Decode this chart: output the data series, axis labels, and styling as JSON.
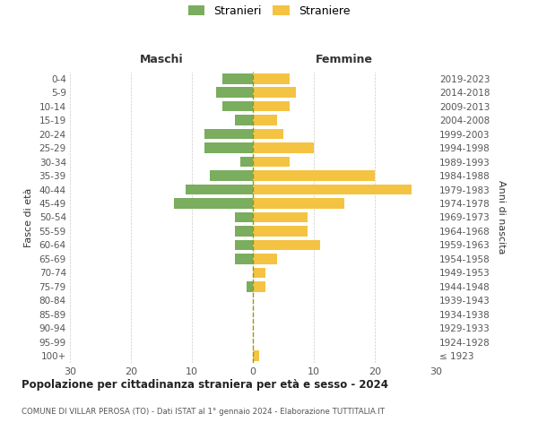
{
  "age_groups": [
    "100+",
    "95-99",
    "90-94",
    "85-89",
    "80-84",
    "75-79",
    "70-74",
    "65-69",
    "60-64",
    "55-59",
    "50-54",
    "45-49",
    "40-44",
    "35-39",
    "30-34",
    "25-29",
    "20-24",
    "15-19",
    "10-14",
    "5-9",
    "0-4"
  ],
  "birth_years": [
    "≤ 1923",
    "1924-1928",
    "1929-1933",
    "1934-1938",
    "1939-1943",
    "1944-1948",
    "1949-1953",
    "1954-1958",
    "1959-1963",
    "1964-1968",
    "1969-1973",
    "1974-1978",
    "1979-1983",
    "1984-1988",
    "1989-1993",
    "1994-1998",
    "1999-2003",
    "2004-2008",
    "2009-2013",
    "2014-2018",
    "2019-2023"
  ],
  "stranieri": [
    0,
    0,
    0,
    0,
    0,
    1,
    0,
    3,
    3,
    3,
    3,
    13,
    11,
    7,
    2,
    8,
    8,
    3,
    5,
    6,
    5
  ],
  "straniere": [
    1,
    0,
    0,
    0,
    0,
    2,
    2,
    4,
    11,
    9,
    9,
    15,
    26,
    20,
    6,
    10,
    5,
    4,
    6,
    7,
    6
  ],
  "male_color": "#7aad5e",
  "female_color": "#f5c342",
  "dashed_color": "#999900",
  "grid_color": "#cccccc",
  "bg_color": "#ffffff",
  "title": "Popolazione per cittadinanza straniera per età e sesso - 2024",
  "subtitle": "COMUNE DI VILLAR PEROSA (TO) - Dati ISTAT al 1° gennaio 2024 - Elaborazione TUTTITALIA.IT",
  "ylabel_left": "Fasce di età",
  "ylabel_right": "Anni di nascita",
  "header_left": "Maschi",
  "header_right": "Femmine",
  "legend_stranieri": "Stranieri",
  "legend_straniere": "Straniere",
  "xlim": 30
}
